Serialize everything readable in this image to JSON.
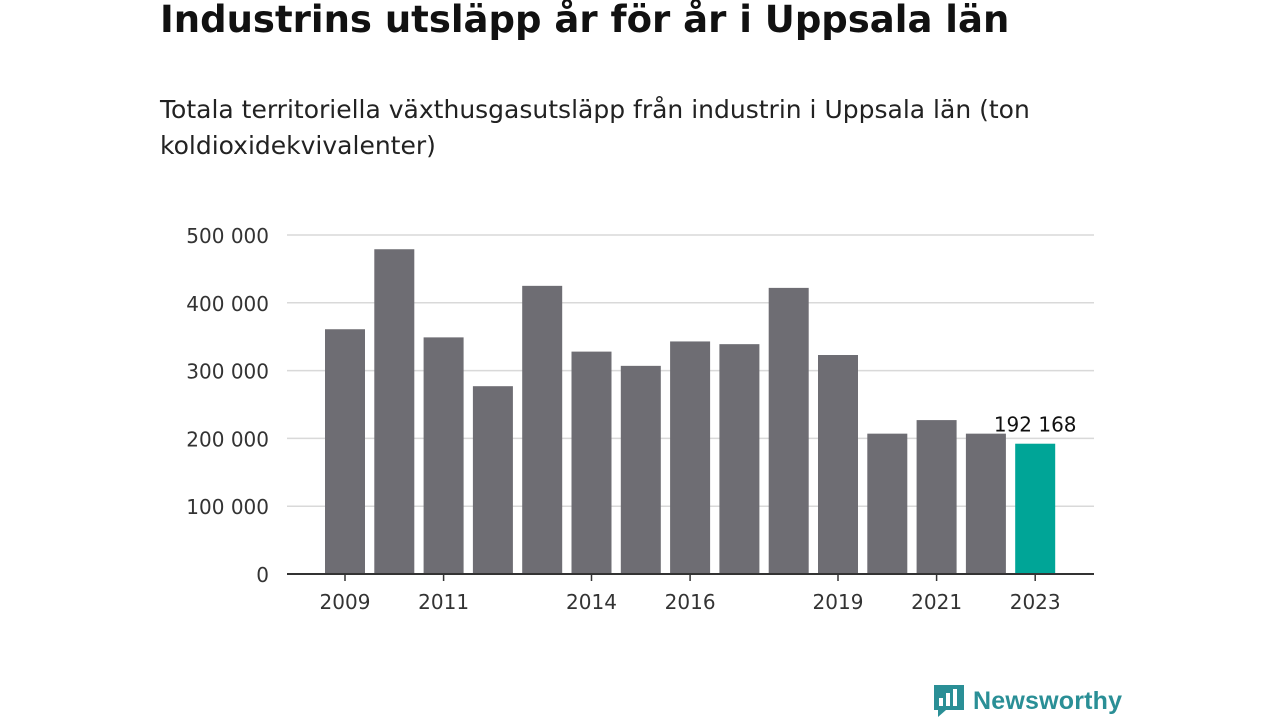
{
  "title": "Industrins utsläpp år för år i Uppsala län",
  "subtitle": "Totala territoriella växthusgasutsläpp från industrin i Uppsala län (ton koldioxidekvivalenter)",
  "brand": {
    "name": "Newsworthy",
    "icon": "newsworthy-logo-icon",
    "color": "#2a8f96"
  },
  "chart_data": {
    "type": "bar",
    "categories": [
      "2009",
      "2010",
      "2011",
      "2012",
      "2013",
      "2014",
      "2015",
      "2016",
      "2017",
      "2018",
      "2019",
      "2020",
      "2021",
      "2022",
      "2023"
    ],
    "values": [
      361000,
      479000,
      349000,
      277000,
      425000,
      328000,
      307000,
      343000,
      339000,
      422000,
      323000,
      207000,
      227000,
      207000,
      192168
    ],
    "x_tick_labels": [
      "2009",
      "2011",
      "2014",
      "2016",
      "2019",
      "2021",
      "2023"
    ],
    "y_ticks": [
      0,
      100000,
      200000,
      300000,
      400000,
      500000
    ],
    "y_tick_labels": [
      "0",
      "100 000",
      "200 000",
      "300 000",
      "400 000",
      "500 000"
    ],
    "ylim": [
      0,
      500000
    ],
    "grid": true,
    "highlight_category": "2023",
    "highlight_label": "192 168",
    "colors": {
      "bar": "#6e6d73",
      "highlight": "#00a597",
      "grid": "#d9d9d9",
      "axis": "#333333"
    }
  }
}
